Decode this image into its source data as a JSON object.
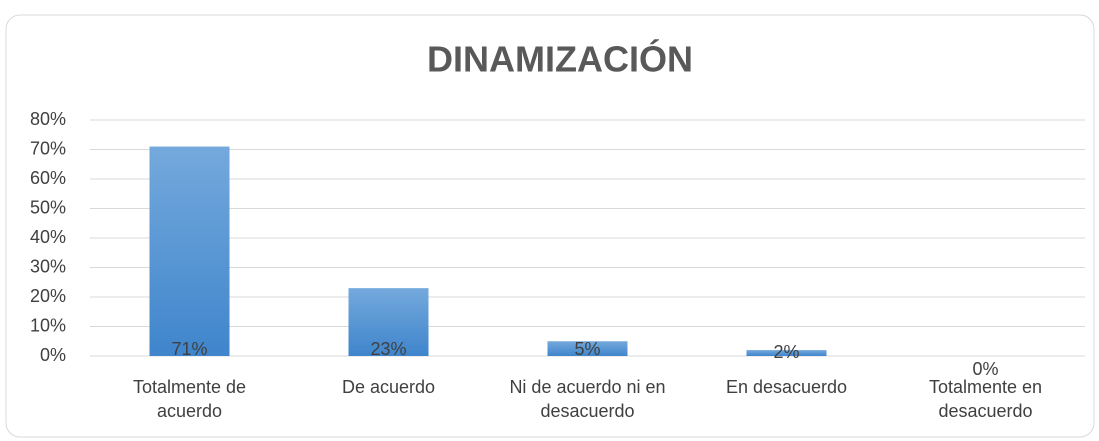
{
  "chart_data": {
    "type": "bar",
    "title": "DINAMIZACIÓN",
    "categories": [
      "Totalmente de acuerdo",
      "De acuerdo",
      "Ni de acuerdo ni en desacuerdo",
      "En desacuerdo",
      "Totalmente en desacuerdo"
    ],
    "values": [
      71,
      23,
      5,
      2,
      0
    ],
    "value_labels": [
      "71%",
      "23%",
      "5%",
      "2%",
      "0%"
    ],
    "color": "#5b9bd5",
    "ylim": [
      0,
      80
    ],
    "yticks": [
      {
        "value": 0,
        "label": "0%"
      },
      {
        "value": 10,
        "label": "10%"
      },
      {
        "value": 20,
        "label": "20%"
      },
      {
        "value": 30,
        "label": "30%"
      },
      {
        "value": 40,
        "label": "40%"
      },
      {
        "value": 50,
        "label": "50%"
      },
      {
        "value": 60,
        "label": "60%"
      },
      {
        "value": 70,
        "label": "70%"
      },
      {
        "value": 80,
        "label": "80%"
      }
    ],
    "grid": true
  }
}
